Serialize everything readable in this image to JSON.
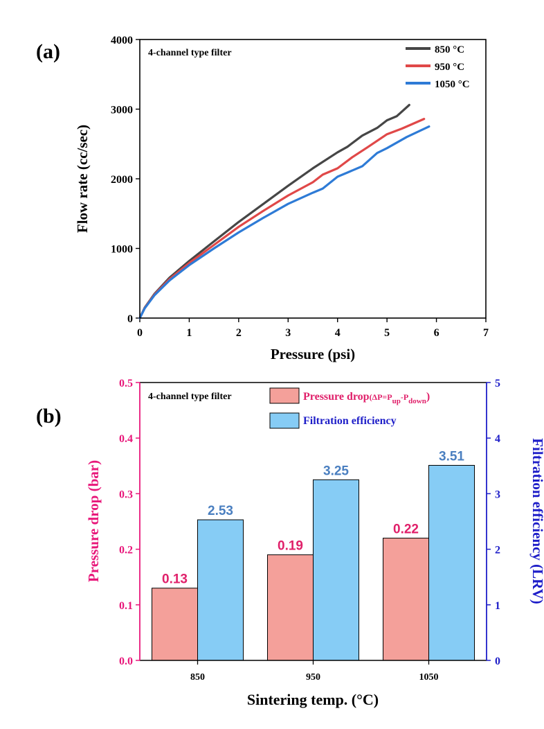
{
  "panel_a": {
    "label": "(a)",
    "annotation": "4-channel type filter"
  },
  "panel_b": {
    "label": "(b)",
    "annotation": "4-channel type filter",
    "legend_pressure": {
      "main": "Pressure drop",
      "formula_open": "(ΔP=P",
      "sub_up": "up",
      "formula_mid": "-P",
      "sub_down": "down",
      "formula_close": ")"
    },
    "legend_filtration": "Filtration efficiency"
  },
  "colors": {
    "s850": "#464646",
    "s950": "#e04848",
    "s1050": "#2e7bd6",
    "bar_pressure": "#f4a09a",
    "bar_filtration": "#86ccf5",
    "axis_left_b": "#e8177a",
    "axis_right_b": "#1d1dc8",
    "label_pressure": "#e0206a",
    "label_filtration": "#4a7fc0"
  },
  "chart_data": [
    {
      "type": "line",
      "title": "",
      "xlabel": "Pressure (psi)",
      "ylabel": "Flow rate (cc/sec)",
      "xlim": [
        0,
        7
      ],
      "ylim": [
        0,
        4000
      ],
      "xticks": [
        "0",
        "1",
        "2",
        "3",
        "4",
        "5",
        "6",
        "7"
      ],
      "yticks": [
        "0",
        "1000",
        "2000",
        "3000",
        "4000"
      ],
      "series": [
        {
          "name": "850 °C",
          "color_key": "s850",
          "x": [
            0,
            0.1,
            0.3,
            0.6,
            1.0,
            1.5,
            2.0,
            2.5,
            3.0,
            3.5,
            4.0,
            4.2,
            4.5,
            4.8,
            5.0,
            5.2,
            5.45
          ],
          "y": [
            0,
            150,
            350,
            580,
            820,
            1100,
            1380,
            1640,
            1900,
            2150,
            2380,
            2460,
            2620,
            2730,
            2840,
            2900,
            3060
          ]
        },
        {
          "name": "950 °C",
          "color_key": "s950",
          "x": [
            0,
            0.1,
            0.3,
            0.6,
            1.0,
            1.5,
            2.0,
            2.5,
            3.0,
            3.5,
            3.7,
            4.0,
            4.3,
            4.6,
            5.0,
            5.3,
            5.75
          ],
          "y": [
            0,
            145,
            340,
            560,
            790,
            1050,
            1310,
            1540,
            1760,
            1950,
            2060,
            2150,
            2310,
            2450,
            2640,
            2720,
            2860
          ]
        },
        {
          "name": "1050 °C",
          "color_key": "s1050",
          "x": [
            0,
            0.1,
            0.3,
            0.6,
            1.0,
            1.5,
            2.0,
            2.5,
            3.0,
            3.5,
            3.7,
            4.0,
            4.2,
            4.5,
            4.8,
            5.0,
            5.4,
            5.85
          ],
          "y": [
            0,
            140,
            330,
            540,
            760,
            1000,
            1230,
            1440,
            1640,
            1800,
            1860,
            2030,
            2090,
            2180,
            2370,
            2440,
            2600,
            2750
          ]
        }
      ]
    },
    {
      "type": "bar",
      "title": "",
      "xlabel": "Sintering temp. (°C)",
      "ylabel_left": "Pressure drop (bar)",
      "ylabel_right": "Filtration efficiency (LRV)",
      "categories": [
        "850",
        "950",
        "1050"
      ],
      "ylim_left": [
        0,
        0.5
      ],
      "ylim_right": [
        0,
        5
      ],
      "yticks_left": [
        "0.0",
        "0.1",
        "0.2",
        "0.3",
        "0.4",
        "0.5"
      ],
      "yticks_right": [
        "0",
        "1",
        "2",
        "3",
        "4",
        "5"
      ],
      "series": [
        {
          "name": "Pressure drop",
          "axis": "left",
          "values": [
            0.13,
            0.19,
            0.22
          ],
          "labels": [
            "0.13",
            "0.19",
            "0.22"
          ]
        },
        {
          "name": "Filtration efficiency",
          "axis": "right",
          "values": [
            2.53,
            3.25,
            3.51
          ],
          "labels": [
            "2.53",
            "3.25",
            "3.51"
          ]
        }
      ]
    }
  ]
}
